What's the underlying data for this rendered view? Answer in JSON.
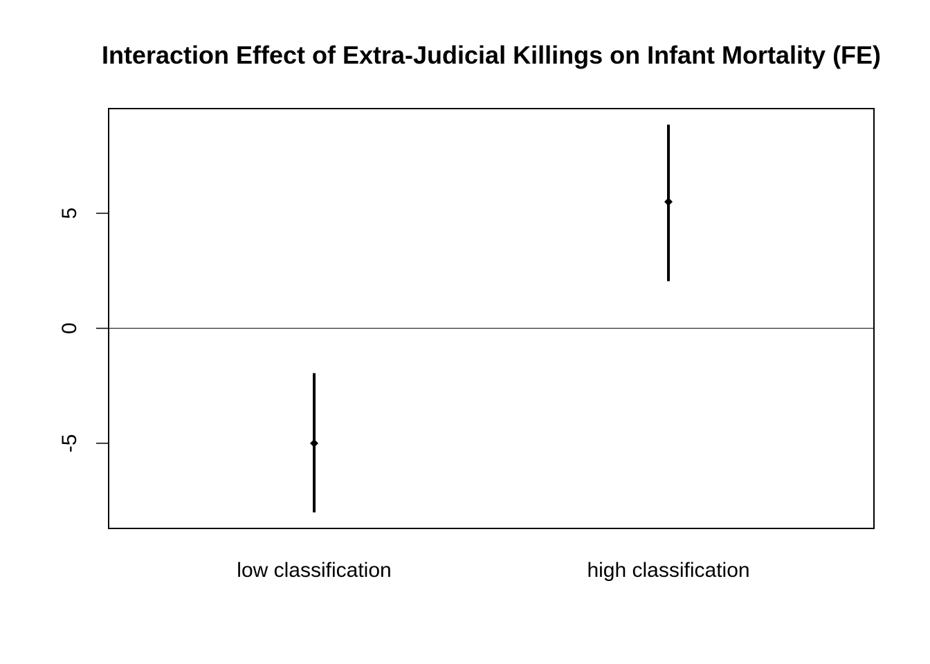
{
  "chart_data": {
    "type": "errorbar",
    "title": "Interaction Effect of Extra-Judicial Killings on Infant Mortality (FE)",
    "xlabel": "",
    "ylabel": "",
    "categories": [
      "low classification",
      "high classification"
    ],
    "estimates": [
      -5.0,
      5.5
    ],
    "lower": [
      -8.0,
      2.05
    ],
    "upper": [
      -1.95,
      8.85
    ],
    "ylim": [
      -8.7,
      9.55
    ],
    "yticks": [
      -5,
      0,
      5
    ],
    "ytick_labels": [
      "-5",
      "0",
      "5"
    ],
    "reference_line": 0,
    "grid": false,
    "legend": "none",
    "colors": {
      "marks": "#000000",
      "axes": "#000000",
      "background": "#ffffff"
    }
  }
}
